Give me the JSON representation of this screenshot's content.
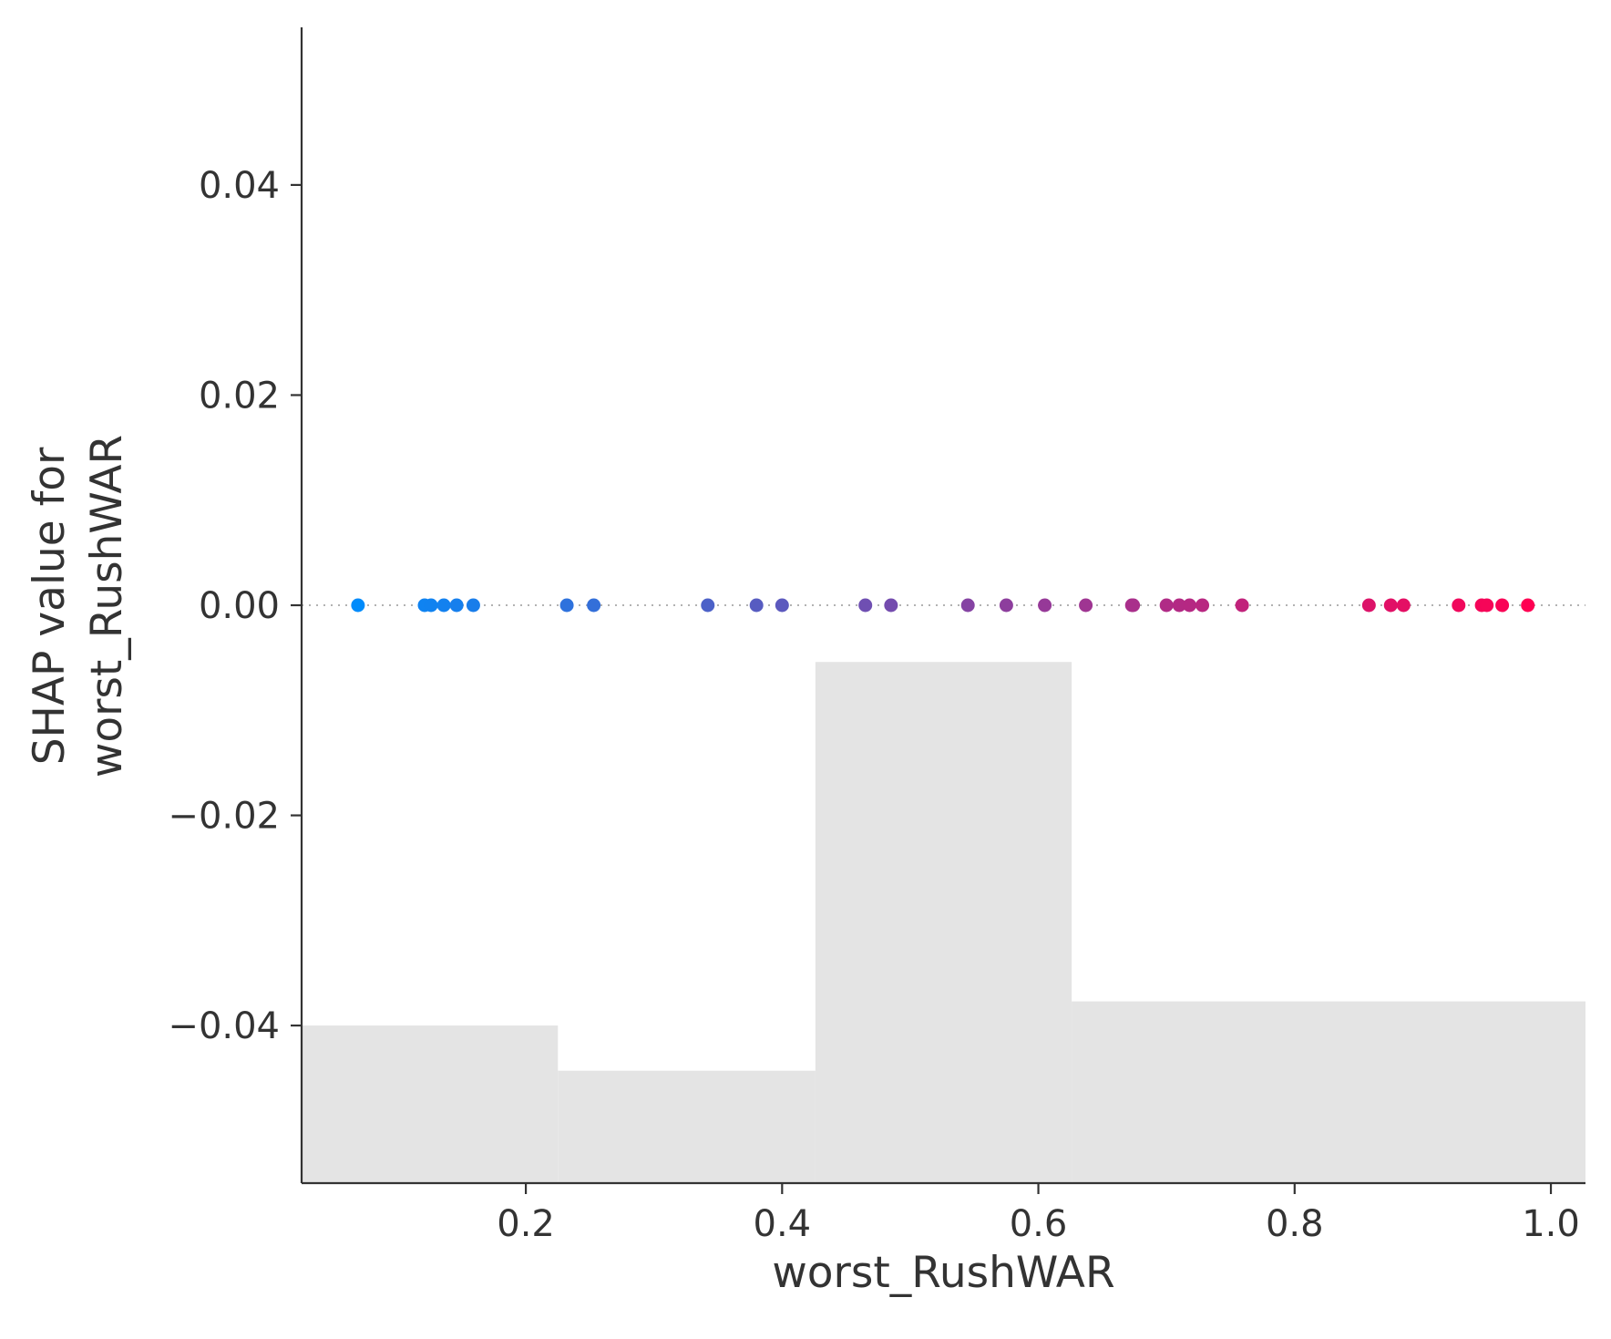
{
  "chart_data": {
    "type": "scatter",
    "xlabel": "worst_RushWAR",
    "ylabel_lines": [
      "SHAP value for",
      "worst_RushWAR"
    ],
    "xlim": [
      0.025,
      1.027
    ],
    "ylim": [
      -0.055,
      0.055
    ],
    "xticks": [
      0.2,
      0.4,
      0.6,
      0.8,
      1.0
    ],
    "xtick_labels": [
      "0.2",
      "0.4",
      "0.6",
      "0.8",
      "1.0"
    ],
    "yticks": [
      0.04,
      0.02,
      0.0,
      -0.02,
      -0.04
    ],
    "ytick_labels": [
      "0.04",
      "0.02",
      "0.00",
      "−0.02",
      "−0.04"
    ],
    "zero_line": true,
    "grid": false,
    "color_scale": {
      "low": "#008bfb",
      "high": "#ff0052"
    },
    "histogram": {
      "color": "#e4e4e4",
      "bins": [
        {
          "x0": 0.025,
          "x1": 0.225,
          "top": -0.04
        },
        {
          "x0": 0.225,
          "x1": 0.426,
          "top": -0.0443
        },
        {
          "x0": 0.426,
          "x1": 0.626,
          "top": -0.0054
        },
        {
          "x0": 0.626,
          "x1": 1.027,
          "top": -0.0377
        }
      ]
    },
    "points": [
      {
        "x": 0.069,
        "y": 0
      },
      {
        "x": 0.121,
        "y": 0
      },
      {
        "x": 0.126,
        "y": 0
      },
      {
        "x": 0.136,
        "y": 0
      },
      {
        "x": 0.146,
        "y": 0
      },
      {
        "x": 0.159,
        "y": 0
      },
      {
        "x": 0.232,
        "y": 0
      },
      {
        "x": 0.253,
        "y": 0
      },
      {
        "x": 0.342,
        "y": 0
      },
      {
        "x": 0.38,
        "y": 0
      },
      {
        "x": 0.4,
        "y": 0
      },
      {
        "x": 0.465,
        "y": 0
      },
      {
        "x": 0.485,
        "y": 0
      },
      {
        "x": 0.545,
        "y": 0
      },
      {
        "x": 0.575,
        "y": 0
      },
      {
        "x": 0.605,
        "y": 0
      },
      {
        "x": 0.637,
        "y": 0
      },
      {
        "x": 0.673,
        "y": 0
      },
      {
        "x": 0.674,
        "y": 0
      },
      {
        "x": 0.7,
        "y": 0
      },
      {
        "x": 0.71,
        "y": 0
      },
      {
        "x": 0.718,
        "y": 0
      },
      {
        "x": 0.728,
        "y": 0
      },
      {
        "x": 0.759,
        "y": 0
      },
      {
        "x": 0.858,
        "y": 0
      },
      {
        "x": 0.875,
        "y": 0
      },
      {
        "x": 0.885,
        "y": 0
      },
      {
        "x": 0.928,
        "y": 0
      },
      {
        "x": 0.946,
        "y": 0
      },
      {
        "x": 0.95,
        "y": 0
      },
      {
        "x": 0.962,
        "y": 0
      },
      {
        "x": 0.982,
        "y": 0
      }
    ]
  }
}
